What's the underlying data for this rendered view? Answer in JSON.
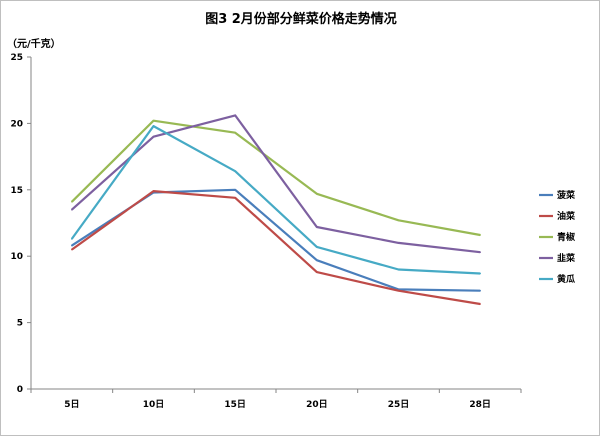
{
  "chart_data": {
    "type": "line",
    "title": "图3   2月份部分鲜菜价格走势情况",
    "ylabel": "（元/千克）",
    "xlabel": "",
    "categories": [
      "5日",
      "10日",
      "15日",
      "20日",
      "25日",
      "28日"
    ],
    "ylim": [
      0,
      25
    ],
    "yticks": [
      0,
      5,
      10,
      15,
      20,
      25
    ],
    "grid": false,
    "legend": "right",
    "series": [
      {
        "name": "菠菜",
        "color": "#4a7ebb",
        "values": [
          10.8,
          14.8,
          15.0,
          9.7,
          7.5,
          7.4
        ]
      },
      {
        "name": "油菜",
        "color": "#be4b48",
        "values": [
          10.5,
          14.9,
          14.4,
          8.8,
          7.4,
          6.4
        ]
      },
      {
        "name": "青椒",
        "color": "#98b954",
        "values": [
          14.1,
          20.2,
          19.3,
          14.7,
          12.7,
          11.6
        ]
      },
      {
        "name": "韭菜",
        "color": "#7d60a0",
        "values": [
          13.5,
          19.0,
          20.6,
          12.2,
          11.0,
          10.3
        ]
      },
      {
        "name": "黄瓜",
        "color": "#46aac5",
        "values": [
          11.3,
          19.8,
          16.4,
          10.7,
          9.0,
          8.7
        ]
      }
    ]
  }
}
